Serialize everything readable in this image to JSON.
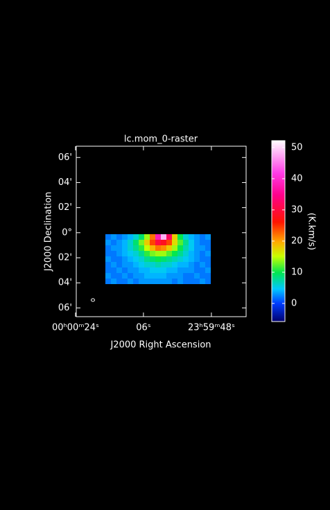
{
  "chart_data": {
    "type": "heatmap",
    "title": "lc.mom_0-raster",
    "x_label": "J2000 Right Ascension",
    "y_label": "J2000 Declination",
    "xlim": [
      23.8,
      -21.2
    ],
    "xticks": [
      {
        "value": 24,
        "label": "00ʰ00ᵐ24ˢ"
      },
      {
        "value": 6,
        "label": "06ˢ"
      },
      {
        "value": -12,
        "label": "23ʰ59ᵐ48ˢ"
      }
    ],
    "ylim": [
      -6.7,
      6.9
    ],
    "yticks": [
      {
        "value": 6,
        "label": "06'"
      },
      {
        "value": 4,
        "label": "04'"
      },
      {
        "value": 2,
        "label": "02'"
      },
      {
        "value": 0,
        "label": "0°"
      },
      {
        "value": -2,
        "label": "02'"
      },
      {
        "value": -4,
        "label": "04'"
      },
      {
        "value": -6,
        "label": "06'"
      }
    ],
    "z": [
      [
        2,
        3,
        2,
        3,
        4,
        6,
        9,
        14,
        22,
        38,
        48,
        32,
        18,
        10,
        6,
        4,
        3,
        2,
        3
      ],
      [
        3,
        2,
        3,
        4,
        6,
        9,
        13,
        18,
        24,
        30,
        28,
        24,
        17,
        12,
        8,
        5,
        3,
        2,
        2
      ],
      [
        2,
        3,
        3,
        4,
        6,
        8,
        11,
        15,
        19,
        22,
        21,
        18,
        14,
        10,
        7,
        5,
        3,
        3,
        2
      ],
      [
        2,
        2,
        3,
        4,
        5,
        6,
        8,
        11,
        13,
        14,
        14,
        12,
        10,
        8,
        6,
        4,
        3,
        2,
        3
      ],
      [
        3,
        2,
        2,
        3,
        4,
        5,
        6,
        8,
        9,
        10,
        9,
        8,
        7,
        6,
        5,
        4,
        3,
        2,
        2
      ],
      [
        2,
        3,
        2,
        3,
        3,
        4,
        5,
        6,
        6,
        7,
        6,
        6,
        5,
        4,
        4,
        3,
        2,
        3,
        2
      ],
      [
        2,
        2,
        3,
        2,
        3,
        3,
        4,
        4,
        5,
        5,
        5,
        4,
        4,
        3,
        3,
        3,
        2,
        2,
        3
      ],
      [
        3,
        2,
        2,
        3,
        2,
        3,
        3,
        4,
        4,
        4,
        4,
        3,
        3,
        3,
        2,
        2,
        3,
        2,
        2
      ],
      [
        2,
        3,
        2,
        2,
        3,
        2,
        3,
        3,
        3,
        3,
        3,
        3,
        2,
        3,
        2,
        2,
        2,
        3,
        2
      ]
    ],
    "colorbar": {
      "label": "(K.km/s)",
      "lim": [
        -5.8,
        52.2
      ],
      "ticks": [
        0,
        10,
        20,
        30,
        40,
        50
      ]
    }
  }
}
